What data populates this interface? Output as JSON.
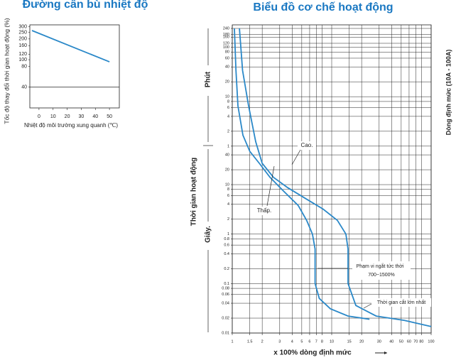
{
  "chart_data": [
    {
      "type": "line",
      "title": "Đường cân bù nhiệt độ",
      "xlabel": "Nhiệt độ môi trường xung quanh (℃)",
      "ylabel": "Tốc độ thay đổi thời gian hoạt động (%)",
      "x": [
        -5,
        50
      ],
      "values": [
        265,
        93
      ],
      "color": "#2a88c8",
      "xlim": [
        -6.5,
        57
      ],
      "ylim": [
        20,
        320
      ],
      "log_y": true,
      "xticks": [
        0,
        10,
        20,
        30,
        40,
        50
      ],
      "yticks": [
        300,
        250,
        200,
        160,
        120,
        100,
        80,
        40
      ],
      "hlines": [
        40
      ]
    },
    {
      "type": "line",
      "title": "Biểu đồ cơ chế hoạt động",
      "xlabel": "x 100% dòng định mức",
      "ylabel": "Thời gian hoạt động",
      "y_unit_labels": [
        "Phút",
        "Giây."
      ],
      "side_label": "Dòng định mức (10A - 100A)",
      "annotations": [
        "Phạm vi ngắt tức thời",
        "700~1500%",
        "Thời gian cắt lớn nhất"
      ],
      "log_x": true,
      "log_y": true,
      "grid": true,
      "xlim": [
        1,
        100
      ],
      "ylim": [
        0.01,
        17000
      ],
      "xticks": [
        1,
        1.5,
        2,
        3,
        4,
        5,
        6,
        7,
        8,
        10,
        15,
        20,
        30,
        40,
        50,
        60,
        70,
        80,
        100
      ],
      "yticks": [
        0.01,
        0.02,
        0.04,
        0.06,
        0.08,
        0.1,
        0.2,
        0.4,
        0.6,
        0.8,
        1,
        2,
        4,
        6,
        8,
        10,
        20,
        40,
        {
          "value": 60,
          "label": "1"
        },
        {
          "value": 120,
          "label": "2"
        },
        {
          "value": 240,
          "label": "4"
        },
        {
          "value": 360,
          "label": "6"
        },
        {
          "value": 480,
          "label": "8"
        },
        {
          "value": 600,
          "label": "10"
        },
        {
          "value": 1200,
          "label": "20"
        },
        {
          "value": 2400,
          "label": "40"
        },
        {
          "value": 3600,
          "label": "60"
        },
        {
          "value": 4800,
          "label": "80"
        },
        {
          "value": 6000,
          "label": "100"
        },
        {
          "value": 7200,
          "label": "120"
        },
        {
          "value": 9600,
          "label": "160"
        },
        {
          "value": 10800,
          "label": "180"
        },
        {
          "value": 14400,
          "label": "240"
        }
      ],
      "series": [
        {
          "name": "Cao.",
          "color": "#2a88c8",
          "x": [
            1.18,
            1.27,
            1.46,
            1.72,
            2.0,
            2.6,
            3.6,
            5.4,
            8.2,
            11.4,
            13.9,
            14.6,
            14.6,
            17.5,
            28,
            54,
            100
          ],
          "values": [
            14400,
            2040,
            390,
            74,
            27,
            14,
            8.7,
            5.3,
            3.2,
            1.9,
            1.0,
            0.5,
            0.1,
            0.036,
            0.022,
            0.018,
            0.0135
          ]
        },
        {
          "name": "Thấp.",
          "color": "#2a88c8",
          "x": [
            1.05,
            1.09,
            1.14,
            1.28,
            1.5,
            1.87,
            2.4,
            3.3,
            4.6,
            5.6,
            6.4,
            6.8,
            6.8,
            7.5,
            9.7,
            14.6,
            24
          ],
          "values": [
            14400,
            2040,
            390,
            100,
            47,
            27,
            14,
            7.3,
            3.8,
            1.9,
            1.0,
            0.5,
            0.1,
            0.05,
            0.031,
            0.022,
            0.019
          ]
        }
      ]
    }
  ]
}
